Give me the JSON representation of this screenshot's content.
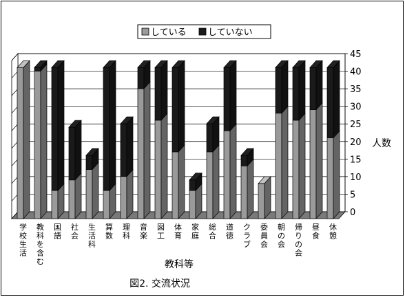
{
  "caption": "図2. 交流状況",
  "chart_data": {
    "type": "bar",
    "stacked": true,
    "three_d": true,
    "title": "",
    "xlabel": "教科等",
    "ylabel": "人数",
    "ylim": [
      0,
      45
    ],
    "yticks": [
      0,
      5,
      10,
      15,
      20,
      25,
      30,
      35,
      40,
      45
    ],
    "grid": true,
    "legend_position": "top",
    "categories": [
      "学校生活",
      "教科を含む",
      "国語",
      "社会",
      "生活科",
      "算数",
      "理科",
      "音楽",
      "図工",
      "体育",
      "家庭",
      "総合",
      "道徳",
      "クラブ",
      "委員会",
      "朝の会",
      "帰りの会",
      "昼食",
      "休憩"
    ],
    "series": [
      {
        "name": "している",
        "color": "#9a9a9a",
        "values": [
          43,
          42,
          8,
          11,
          14,
          8,
          12,
          37,
          28,
          19,
          8,
          19,
          25,
          15,
          10,
          30,
          28,
          31,
          23
        ]
      },
      {
        "name": "していない",
        "color": "#1a1a1a",
        "values": [
          0,
          1,
          35,
          15,
          4,
          35,
          15,
          6,
          15,
          24,
          3,
          8,
          18,
          3,
          0,
          13,
          15,
          12,
          20
        ]
      }
    ]
  }
}
